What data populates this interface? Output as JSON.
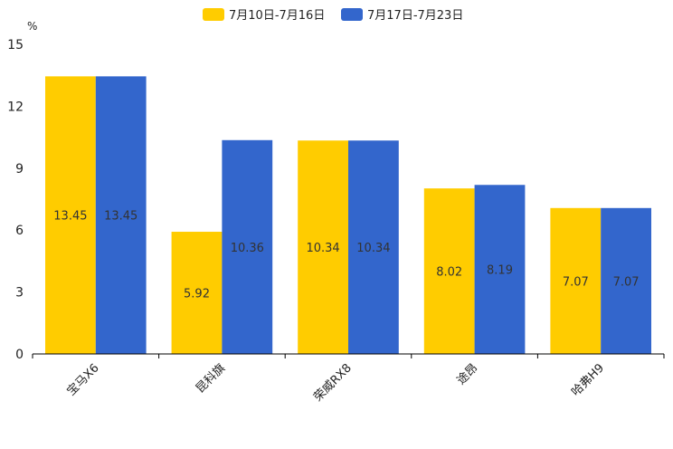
{
  "chart_data": {
    "type": "bar",
    "title": "",
    "xlabel": "",
    "ylabel": "%",
    "ylim": [
      0,
      15
    ],
    "yticks": [
      0,
      3,
      6,
      9,
      12,
      15
    ],
    "categories": [
      "宝马X6",
      "昆科旗",
      "荣威RX8",
      "途昂",
      "哈弗H9"
    ],
    "series": [
      {
        "name": "7月10日-7月16日",
        "color": "#FFCC00",
        "values": [
          13.45,
          5.92,
          10.34,
          8.02,
          7.07
        ],
        "labels": [
          "13.45",
          "5.92",
          "10.34",
          "8.02",
          "7.07"
        ]
      },
      {
        "name": "7月17日-7月23日",
        "color": "#3366CC",
        "values": [
          13.45,
          10.36,
          10.34,
          8.19,
          7.07
        ],
        "labels": [
          "13.45",
          "10.36",
          "10.34",
          "8.19",
          "7.07"
        ]
      }
    ],
    "legend": "top-center",
    "grid": false
  }
}
